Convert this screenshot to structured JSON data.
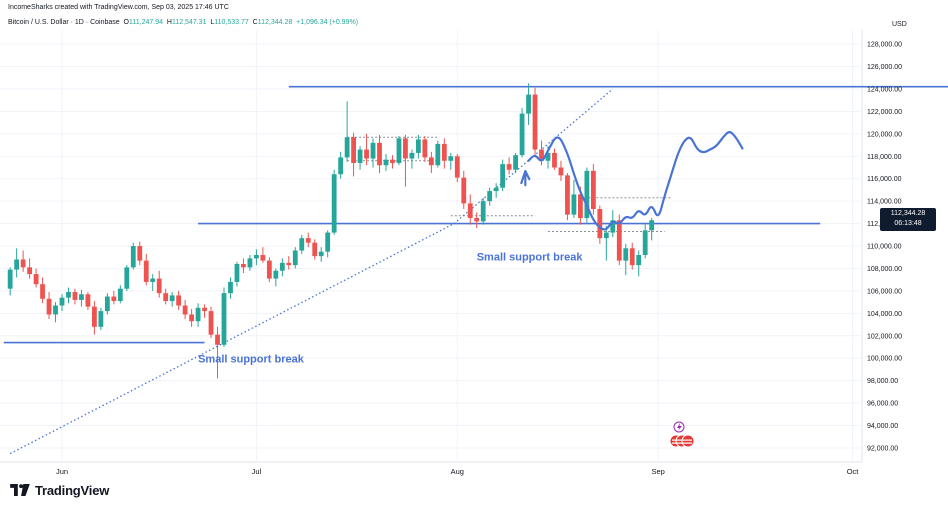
{
  "header": {
    "created_by": "IncomeSharks created with TradingView.com, Sep 03, 2025 17:46 UTC",
    "symbol": "Bitcoin / U.S. Dollar · 1D · Coinbase",
    "open_label": "O",
    "open": "111,247.94",
    "high_label": "H",
    "high": "112,547.31",
    "low_label": "L",
    "low": "110,533.77",
    "close_label": "C",
    "close": "112,344.28",
    "change": "+1,096.34 (+0.99%)"
  },
  "price_axis": {
    "currency": "USD",
    "current_price": "112,344.28",
    "countdown": "06:13:48"
  },
  "footer": {
    "brand": "TradingView"
  },
  "colors": {
    "up": "#26a69a",
    "down": "#ef5350",
    "annotation": "#4a73d6",
    "price_tag": "#0f1b2e"
  },
  "chart_data": {
    "type": "candlestick",
    "title": "Bitcoin / U.S. Dollar · 1D · Coinbase",
    "ylim": [
      91000,
      129000
    ],
    "yticks": [
      92000,
      94000,
      96000,
      98000,
      100000,
      102000,
      104000,
      106000,
      108000,
      110000,
      112000,
      114000,
      116000,
      118000,
      120000,
      122000,
      124000,
      126000,
      128000
    ],
    "ytick_labels": [
      "92,000.00",
      "94,000.00",
      "96,000.00",
      "98,000.00",
      "100,000.00",
      "102,000.00",
      "104,000.00",
      "106,000.00",
      "108,000.00",
      "110,000.00",
      "112,000.00",
      "114,000.00",
      "116,000.00",
      "118,000.00",
      "120,000.00",
      "122,000.00",
      "124,000.00",
      "126,000.00",
      "128,000.00"
    ],
    "xticks": [
      {
        "label": "Jun",
        "day": 0
      },
      {
        "label": "Jul",
        "day": 30
      },
      {
        "label": "Aug",
        "day": 61
      },
      {
        "label": "Sep",
        "day": 92
      },
      {
        "label": "Oct",
        "day": 122
      }
    ],
    "start_day": -8,
    "candles": [
      [
        106200,
        108100,
        105600,
        107900
      ],
      [
        107900,
        109800,
        107200,
        108800
      ],
      [
        108800,
        109600,
        107700,
        108100
      ],
      [
        108100,
        108900,
        107100,
        107500
      ],
      [
        107500,
        108000,
        106300,
        106600
      ],
      [
        106600,
        107200,
        104900,
        105300
      ],
      [
        105300,
        105900,
        103500,
        103900
      ],
      [
        103900,
        105000,
        103200,
        104700
      ],
      [
        104700,
        105700,
        104200,
        105400
      ],
      [
        105400,
        106300,
        104900,
        105900
      ],
      [
        105900,
        106200,
        104800,
        105200
      ],
      [
        105200,
        106100,
        104600,
        105700
      ],
      [
        105700,
        105900,
        104300,
        104600
      ],
      [
        104600,
        105100,
        102100,
        102800
      ],
      [
        102800,
        104500,
        102500,
        104200
      ],
      [
        104200,
        105800,
        103900,
        105500
      ],
      [
        105500,
        106000,
        104800,
        105100
      ],
      [
        105100,
        106500,
        104900,
        106200
      ],
      [
        106200,
        108300,
        106000,
        108100
      ],
      [
        108100,
        110300,
        107900,
        110000
      ],
      [
        110000,
        110400,
        108300,
        108700
      ],
      [
        108700,
        109300,
        106500,
        106800
      ],
      [
        106800,
        107500,
        106000,
        107100
      ],
      [
        107100,
        107800,
        105400,
        105800
      ],
      [
        105800,
        106200,
        104800,
        105100
      ],
      [
        105100,
        105900,
        104600,
        105600
      ],
      [
        105600,
        106000,
        104300,
        104700
      ],
      [
        104700,
        105200,
        103500,
        103900
      ],
      [
        103900,
        104400,
        102800,
        103300
      ],
      [
        103300,
        104900,
        102800,
        104500
      ],
      [
        104500,
        104800,
        103600,
        104200
      ],
      [
        104200,
        104600,
        101800,
        102100
      ],
      [
        102100,
        102800,
        98200,
        101200
      ],
      [
        101200,
        106300,
        101000,
        105800
      ],
      [
        105800,
        107200,
        105300,
        106800
      ],
      [
        106800,
        108600,
        106400,
        108400
      ],
      [
        108400,
        108900,
        107600,
        108100
      ],
      [
        108100,
        109200,
        107800,
        108900
      ],
      [
        108900,
        109700,
        108300,
        109200
      ],
      [
        109200,
        109900,
        108500,
        108700
      ],
      [
        108700,
        109000,
        106800,
        107100
      ],
      [
        107100,
        108000,
        106400,
        107800
      ],
      [
        107800,
        108900,
        107300,
        108500
      ],
      [
        108500,
        109100,
        107900,
        108300
      ],
      [
        108300,
        109900,
        108000,
        109600
      ],
      [
        109600,
        111000,
        109300,
        110700
      ],
      [
        110700,
        111200,
        109900,
        110300
      ],
      [
        110300,
        110600,
        108800,
        109100
      ],
      [
        109100,
        109900,
        108600,
        109500
      ],
      [
        109500,
        111400,
        109000,
        111200
      ],
      [
        111200,
        116800,
        111000,
        116400
      ],
      [
        116400,
        118400,
        116000,
        117900
      ],
      [
        117900,
        122900,
        117500,
        119700
      ],
      [
        119700,
        120100,
        116200,
        117400
      ],
      [
        117400,
        118900,
        116800,
        118600
      ],
      [
        118600,
        120000,
        117200,
        117800
      ],
      [
        117800,
        119600,
        117000,
        119200
      ],
      [
        119200,
        119900,
        116500,
        117200
      ],
      [
        117200,
        118200,
        116700,
        117700
      ],
      [
        117700,
        118100,
        116900,
        117400
      ],
      [
        117400,
        119800,
        117200,
        119600
      ],
      [
        119600,
        119900,
        115300,
        117800
      ],
      [
        117800,
        118600,
        116900,
        118300
      ],
      [
        118300,
        119900,
        117800,
        119500
      ],
      [
        119500,
        119800,
        117500,
        117900
      ],
      [
        117900,
        118400,
        116500,
        117200
      ],
      [
        117200,
        119400,
        117000,
        119100
      ],
      [
        119100,
        119600,
        116900,
        117600
      ],
      [
        117600,
        118300,
        116800,
        118000
      ],
      [
        118000,
        118200,
        115700,
        116100
      ],
      [
        116100,
        116700,
        113300,
        113800
      ],
      [
        113800,
        114600,
        111900,
        112500
      ],
      [
        112500,
        113000,
        111600,
        112200
      ],
      [
        112200,
        114300,
        111900,
        114000
      ],
      [
        114000,
        115200,
        113600,
        114900
      ],
      [
        114900,
        115600,
        114300,
        115200
      ],
      [
        115200,
        117700,
        114900,
        117300
      ],
      [
        117300,
        117900,
        116400,
        116800
      ],
      [
        116800,
        118300,
        116500,
        118100
      ],
      [
        118100,
        122300,
        117900,
        121800
      ],
      [
        121800,
        124500,
        120800,
        123500
      ],
      [
        123500,
        124100,
        118000,
        118600
      ],
      [
        118600,
        119400,
        117200,
        117600
      ],
      [
        117600,
        118900,
        116900,
        118300
      ],
      [
        118300,
        118700,
        116800,
        117000
      ],
      [
        117000,
        117600,
        115800,
        116300
      ],
      [
        116300,
        116500,
        112300,
        112800
      ],
      [
        112800,
        115900,
        112500,
        114600
      ],
      [
        114600,
        115300,
        111900,
        112500
      ],
      [
        112500,
        117000,
        112100,
        116700
      ],
      [
        116700,
        117300,
        112800,
        113300
      ],
      [
        113300,
        113600,
        110200,
        110700
      ],
      [
        110700,
        111800,
        108700,
        111200
      ],
      [
        111200,
        113200,
        110800,
        112300
      ],
      [
        112300,
        112800,
        108300,
        108700
      ],
      [
        108700,
        110200,
        107400,
        109800
      ],
      [
        109800,
        110300,
        107900,
        108300
      ],
      [
        108300,
        109600,
        107300,
        109200
      ],
      [
        109200,
        112100,
        108900,
        111400
      ],
      [
        111400,
        112500,
        110500,
        112300
      ]
    ],
    "trendlines": [
      {
        "x": [
          -8,
          60.5
        ],
        "y": [
          91500,
          112000
        ],
        "style": "dotted"
      },
      {
        "x": [
          60.5,
          85
        ],
        "y": [
          112000,
          124000
        ],
        "style": "dotted"
      },
      {
        "x": [
          -9,
          22
        ],
        "y": [
          101400,
          101400
        ],
        "style": "solid"
      },
      {
        "x": [
          21,
          117
        ],
        "y": [
          112000,
          112000
        ],
        "style": "solid"
      },
      {
        "x": [
          35,
          142
        ],
        "y": [
          124200,
          124200
        ],
        "style": "solid"
      }
    ],
    "zone_lines": [
      {
        "x": [
          44,
          58
        ],
        "y": [
          119700,
          119700
        ]
      },
      {
        "x": [
          44,
          58
        ],
        "y": [
          117600,
          117600
        ]
      },
      {
        "x": [
          80,
          94
        ],
        "y": [
          114300,
          114300
        ]
      },
      {
        "x": [
          60,
          73
        ],
        "y": [
          112700,
          112700
        ]
      },
      {
        "x": [
          75,
          93
        ],
        "y": [
          111300,
          111300
        ]
      }
    ],
    "projection": {
      "x": [
        72,
        73,
        74,
        75,
        76.5,
        78,
        79,
        80,
        81,
        82,
        83,
        84,
        85,
        86,
        87,
        88,
        89,
        90,
        91,
        92,
        93,
        94,
        95,
        96,
        97,
        98,
        99,
        100,
        101,
        102,
        103,
        104,
        105
      ],
      "y": [
        117600,
        118200,
        117400,
        118500,
        120100,
        118300,
        116400,
        114800,
        113600,
        112300,
        111600,
        111400,
        112300,
        111900,
        112700,
        112400,
        113300,
        112600,
        113800,
        112300,
        114500,
        116300,
        118200,
        119400,
        119800,
        118600,
        118300,
        118600,
        118900,
        119700,
        120300,
        119700,
        118700
      ]
    },
    "arrow": {
      "x": 71.5,
      "y": 116500
    },
    "annotations": [
      {
        "text": "Small support break",
        "x": 21,
        "y": 99600
      },
      {
        "text": "Small support break",
        "x": 64,
        "y": 108700
      }
    ]
  }
}
